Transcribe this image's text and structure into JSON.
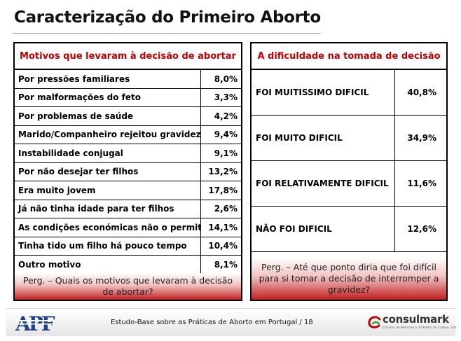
{
  "title": "Caracterização do Primeiro Aborto",
  "left_panel": {
    "heading": "Motivos que levaram à decisão de abortar",
    "rows": [
      {
        "label": "Por pressões familiares",
        "value": "8,0%"
      },
      {
        "label": "Por malformações do feto",
        "value": "3,3%"
      },
      {
        "label": "Por problemas de saúde",
        "value": "4,2%"
      },
      {
        "label": "Marido/Companheiro rejeitou gravidez",
        "value": "9,4%"
      },
      {
        "label": "Instabilidade conjugal",
        "value": "9,1%"
      },
      {
        "label": "Por não desejar ter filhos",
        "value": "13,2%"
      },
      {
        "label": "Era muito jovem",
        "value": "17,8%"
      },
      {
        "label": "Já não tinha idade para ter filhos",
        "value": "2,6%"
      },
      {
        "label": "As condições económicas não o permitia",
        "value": "14,1%"
      },
      {
        "label": "Tinha tido um filho há pouco tempo",
        "value": "10,4%"
      },
      {
        "label": "Outro motivo",
        "value": "8,1%"
      }
    ],
    "question": "Perg. – Quais os motivos que levaram à decisão de abortar?"
  },
  "right_panel": {
    "heading": "A dificuldade na tomada de decisão",
    "rows": [
      {
        "label": "FOI MUITISSIMO DIFICIL",
        "value": "40,8%"
      },
      {
        "label": "FOI MUITO DIFICIL",
        "value": "34,9%"
      },
      {
        "label": "FOI RELATIVAMENTE DIFICIL",
        "value": "11,6%"
      },
      {
        "label": "NÃO FOI DIFICIL",
        "value": "12,6%"
      }
    ],
    "question": "Perg. – Até que ponto diria que foi difícil para si tomar a decisão de interromper a gravidez?"
  },
  "footer": {
    "left_logo": "APF",
    "text": "Estudo-Base sobre as Práticas de Aborto em Portugal  /  18",
    "right_logo": "consulmark",
    "right_tagline": "Estudos de Mercado e Trabalho de Campo, Lda",
    "colors": {
      "logo_blue": "#1e3f8c",
      "accent_red": "#c00000",
      "accent_green": "#3a9a3a"
    }
  }
}
